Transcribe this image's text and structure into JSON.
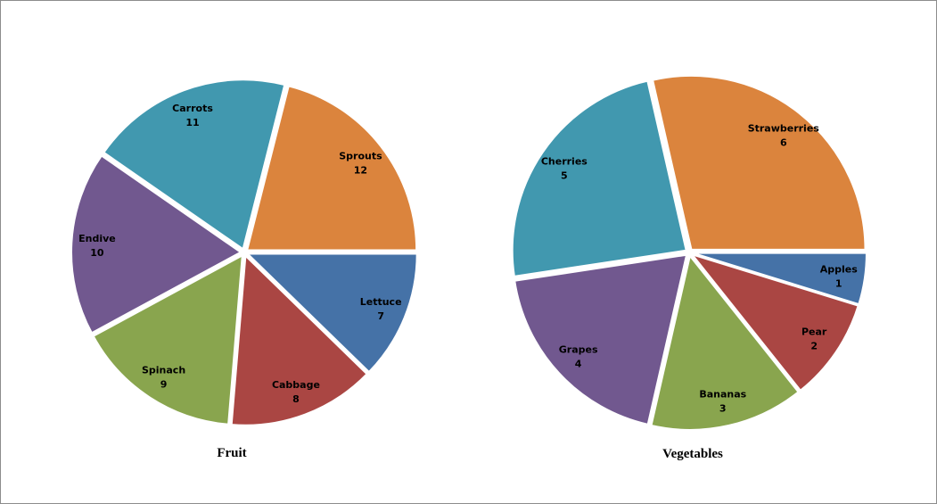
{
  "chart_data": [
    {
      "type": "pie",
      "title": "Fruit",
      "categories": [
        "Lettuce",
        "Cabbage",
        "Spinach",
        "Endive",
        "Carrots",
        "Sprouts"
      ],
      "values": [
        7,
        8,
        9,
        10,
        11,
        12
      ],
      "colors": [
        "#4572A7",
        "#AA4643",
        "#89A54E",
        "#71588F",
        "#4198AF",
        "#DB843D"
      ],
      "start_angle": "3 o'clock",
      "direction": "clockwise",
      "data_labels": "category and value"
    },
    {
      "type": "pie",
      "title": "Vegetables",
      "categories": [
        "Apples",
        "Pear",
        "Bananas",
        "Grapes",
        "Cherries",
        "Strawberries"
      ],
      "values": [
        1,
        2,
        3,
        4,
        5,
        6
      ],
      "colors": [
        "#4572A7",
        "#AA4643",
        "#89A54E",
        "#71588F",
        "#4198AF",
        "#DB843D"
      ],
      "start_angle": "3 o'clock",
      "direction": "clockwise",
      "data_labels": "category and value"
    }
  ]
}
